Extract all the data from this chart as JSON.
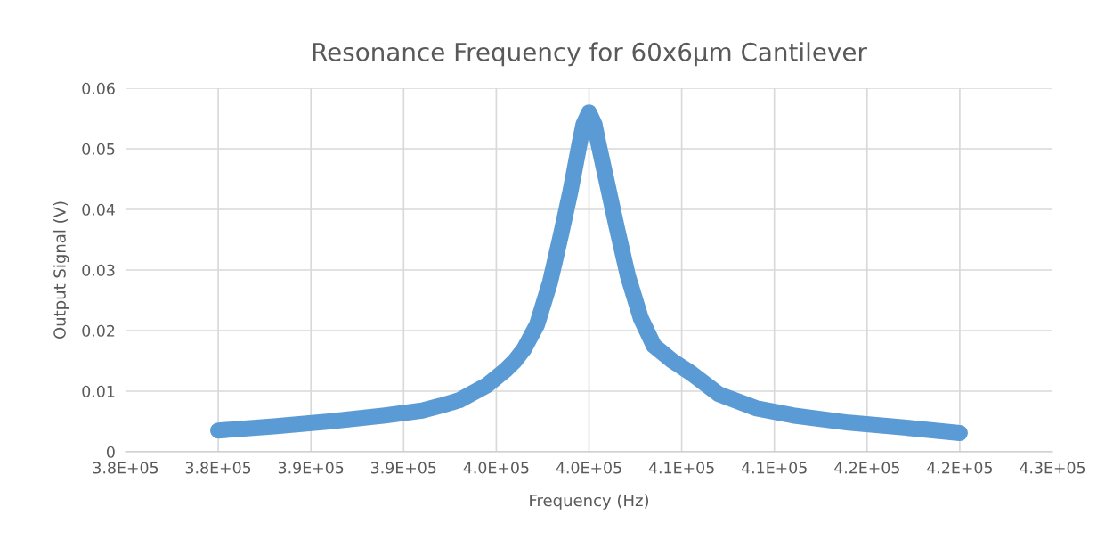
{
  "chart_data": {
    "type": "line",
    "title": "Resonance Frequency for 60x6µm Cantilever",
    "xlabel": "Frequency (Hz)",
    "ylabel": "Output Signal (V)",
    "series": [
      {
        "color": "#5b9bd5",
        "x": [
          380000,
          383000,
          386000,
          389000,
          391000,
          392000,
          393000,
          394500,
          395500,
          396000,
          396500,
          397200,
          397900,
          398200,
          398500,
          399000,
          399500,
          399700,
          400000,
          400300,
          400500,
          401000,
          401500,
          402100,
          402800,
          403500,
          404500,
          405500,
          407000,
          409000,
          411000,
          414000,
          417000,
          420000
        ],
        "values": [
          0.0035,
          0.0042,
          0.005,
          0.006,
          0.0068,
          0.0076,
          0.0085,
          0.011,
          0.0135,
          0.015,
          0.017,
          0.021,
          0.028,
          0.032,
          0.036,
          0.043,
          0.051,
          0.054,
          0.056,
          0.054,
          0.051,
          0.044,
          0.037,
          0.029,
          0.022,
          0.0175,
          0.015,
          0.013,
          0.0095,
          0.0072,
          0.006,
          0.0048,
          0.004,
          0.0031
        ]
      }
    ],
    "xlim": [
      375000,
      425000
    ],
    "xticks": [
      {
        "value": 375000,
        "label": "3.8E+05"
      },
      {
        "value": 380000,
        "label": "3.8E+05"
      },
      {
        "value": 385000,
        "label": "3.9E+05"
      },
      {
        "value": 390000,
        "label": "3.9E+05"
      },
      {
        "value": 395000,
        "label": "4.0E+05"
      },
      {
        "value": 400000,
        "label": "4.0E+05"
      },
      {
        "value": 405000,
        "label": "4.1E+05"
      },
      {
        "value": 410000,
        "label": "4.1E+05"
      },
      {
        "value": 415000,
        "label": "4.2E+05"
      },
      {
        "value": 420000,
        "label": "4.2E+05"
      },
      {
        "value": 425000,
        "label": "4.3E+05"
      }
    ],
    "ylim": [
      0,
      0.06
    ],
    "yticks": [
      0,
      0.01,
      0.02,
      0.03,
      0.04,
      0.05,
      0.06
    ],
    "grid": true,
    "line_style": "solid"
  }
}
